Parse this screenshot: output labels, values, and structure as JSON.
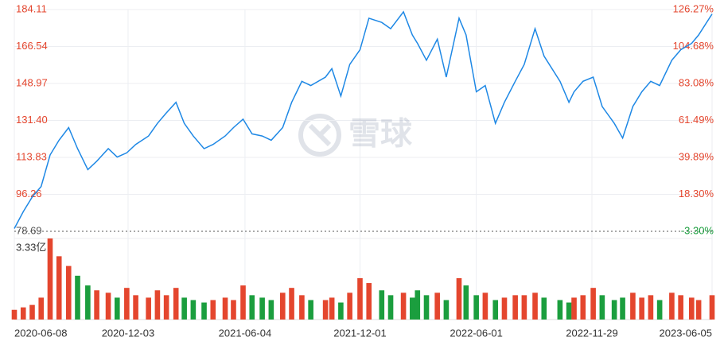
{
  "chart_data": [
    {
      "type": "line",
      "watermark": "雪球",
      "x": [
        "2020-06-08",
        "2020-06-22",
        "2020-07-06",
        "2020-07-20",
        "2020-08-03",
        "2020-08-17",
        "2020-09-01",
        "2020-09-15",
        "2020-10-01",
        "2020-10-15",
        "2020-11-02",
        "2020-11-16",
        "2020-12-01",
        "2020-12-15",
        "2021-01-04",
        "2021-01-18",
        "2021-02-01",
        "2021-02-16",
        "2021-03-01",
        "2021-03-15",
        "2021-04-01",
        "2021-04-15",
        "2021-05-04",
        "2021-05-17",
        "2021-06-01",
        "2021-06-15",
        "2021-07-01",
        "2021-07-15",
        "2021-08-02",
        "2021-08-16",
        "2021-09-01",
        "2021-09-15",
        "2021-10-08",
        "2021-10-18",
        "2021-11-01",
        "2021-11-15",
        "2021-12-01",
        "2021-12-15",
        "2022-01-04",
        "2022-01-18",
        "2022-02-07",
        "2022-02-21",
        "2022-03-01",
        "2022-03-15",
        "2022-04-01",
        "2022-04-15",
        "2022-05-05",
        "2022-05-16",
        "2022-06-01",
        "2022-06-15",
        "2022-07-01",
        "2022-07-15",
        "2022-08-01",
        "2022-08-15",
        "2022-09-01",
        "2022-09-15",
        "2022-10-10",
        "2022-10-24",
        "2022-11-01",
        "2022-11-15",
        "2022-12-01",
        "2022-12-15",
        "2023-01-03",
        "2023-01-16",
        "2023-02-01",
        "2023-02-15",
        "2023-03-01",
        "2023-03-15",
        "2023-04-03",
        "2023-04-17",
        "2023-05-04",
        "2023-05-15",
        "2023-06-05"
      ],
      "xlim": [
        "2020-06-08",
        "2023-06-05"
      ],
      "series": [
        {
          "color": "#1e88e5",
          "values": [
            80,
            88,
            95,
            100,
            115,
            122,
            128,
            118,
            108,
            112,
            118,
            114,
            116,
            120,
            124,
            130,
            135,
            140,
            130,
            124,
            118,
            120,
            124,
            128,
            132,
            125,
            124,
            122,
            128,
            140,
            150,
            148,
            152,
            156,
            143,
            158,
            165,
            180,
            178,
            175,
            183,
            172,
            168,
            160,
            170,
            152,
            180,
            172,
            145,
            148,
            130,
            140,
            150,
            158,
            175,
            162,
            150,
            140,
            145,
            150,
            152,
            138,
            130,
            123,
            138,
            145,
            150,
            148,
            160,
            165,
            168,
            172,
            182
          ]
        }
      ],
      "ylim": [
        78.69,
        184.11
      ],
      "yticks": [
        184.11,
        166.54,
        148.97,
        {
          "value": 131.4,
          "label": "131.40"
        },
        113.83,
        96.26,
        78.69
      ],
      "y2lim": [
        -3.3,
        126.27
      ],
      "y2ticks": [
        {
          "value": 126.27,
          "label": "126.27%"
        },
        {
          "value": 104.68,
          "label": "104.68%"
        },
        {
          "value": 83.08,
          "label": "83.08%"
        },
        {
          "value": 61.49,
          "label": "61.49%"
        },
        {
          "value": 39.89,
          "label": "39.89%"
        },
        {
          "value": 18.3,
          "label": "18.30%"
        },
        {
          "value": -3.3,
          "label": "-3.30%"
        }
      ],
      "up_color": "#e4462e",
      "down_color": "#1b9e3e"
    },
    {
      "type": "bar",
      "x": [
        "2020-06-08",
        "2020-06-22",
        "2020-07-06",
        "2020-07-20",
        "2020-08-03",
        "2020-08-17",
        "2020-09-01",
        "2020-09-15",
        "2020-10-01",
        "2020-10-15",
        "2020-11-02",
        "2020-11-16",
        "2020-12-01",
        "2020-12-15",
        "2021-01-04",
        "2021-01-18",
        "2021-02-01",
        "2021-02-16",
        "2021-03-01",
        "2021-03-15",
        "2021-04-01",
        "2021-04-15",
        "2021-05-04",
        "2021-05-17",
        "2021-06-01",
        "2021-06-15",
        "2021-07-01",
        "2021-07-15",
        "2021-08-02",
        "2021-08-16",
        "2021-09-01",
        "2021-09-15",
        "2021-10-08",
        "2021-10-18",
        "2021-11-01",
        "2021-11-15",
        "2021-12-01",
        "2021-12-15",
        "2022-01-04",
        "2022-01-18",
        "2022-02-07",
        "2022-02-21",
        "2022-03-01",
        "2022-03-15",
        "2022-04-01",
        "2022-04-15",
        "2022-05-05",
        "2022-05-16",
        "2022-06-01",
        "2022-06-15",
        "2022-07-01",
        "2022-07-15",
        "2022-08-01",
        "2022-08-15",
        "2022-09-01",
        "2022-09-15",
        "2022-10-10",
        "2022-10-24",
        "2022-11-01",
        "2022-11-15",
        "2022-12-01",
        "2022-12-15",
        "2023-01-03",
        "2023-01-16",
        "2023-02-01",
        "2023-02-15",
        "2023-03-01",
        "2023-03-15",
        "2023-04-03",
        "2023-04-17",
        "2023-05-04",
        "2023-05-15",
        "2023-06-05"
      ],
      "xlim": [
        "2020-06-08",
        "2023-06-05"
      ],
      "values": [
        0.4,
        0.5,
        0.6,
        0.9,
        3.33,
        2.6,
        2.2,
        1.8,
        1.4,
        1.2,
        1.1,
        0.9,
        1.3,
        1.0,
        0.9,
        1.2,
        1.0,
        1.3,
        0.9,
        0.8,
        0.7,
        0.8,
        0.9,
        0.8,
        1.4,
        1.0,
        0.9,
        0.8,
        1.1,
        1.3,
        1.0,
        0.8,
        0.8,
        0.9,
        0.7,
        1.1,
        1.7,
        1.5,
        1.2,
        1.0,
        1.1,
        0.9,
        1.2,
        1.0,
        1.1,
        0.8,
        1.7,
        1.4,
        1.0,
        1.1,
        0.8,
        0.9,
        1.0,
        1.0,
        1.1,
        0.9,
        0.8,
        0.7,
        0.9,
        1.0,
        1.3,
        1.0,
        0.8,
        0.9,
        1.1,
        0.9,
        1.0,
        0.8,
        1.1,
        1.0,
        0.9,
        0.8,
        1.0
      ],
      "ylim": [
        0,
        3.33
      ],
      "yticks": [
        {
          "value": 3.33,
          "label": "3.33亿"
        }
      ],
      "xticks": [
        "2020-06-08",
        "2020-12-03",
        "2021-06-04",
        "2021-12-01",
        "2022-06-01",
        "2022-11-29",
        "2023-06-05"
      ]
    }
  ]
}
